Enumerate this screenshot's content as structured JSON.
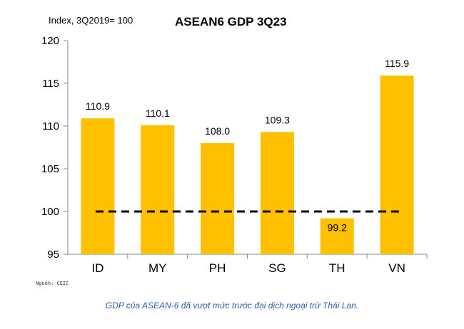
{
  "chart_data": {
    "type": "bar",
    "title": "ASEAN6 GDP 3Q23",
    "ylabel": "Index, 3Q2019= 100",
    "xlabel": "",
    "categories": [
      "ID",
      "MY",
      "PH",
      "SG",
      "TH",
      "VN"
    ],
    "values": [
      110.9,
      110.1,
      108.0,
      109.3,
      99.2,
      115.9
    ],
    "value_labels": [
      "110.9",
      "110.1",
      "108.0",
      "109.3",
      "99.2",
      "115.9"
    ],
    "ylim": [
      95,
      120
    ],
    "yticks": [
      "95",
      "100",
      "105",
      "110",
      "115",
      "120"
    ],
    "reference_line": 100,
    "grid": false,
    "legend": "none",
    "bar_color": "#ffc000",
    "line_color": "#000000"
  },
  "source": "Nguồn: CEIC",
  "caption": "GDP của ASEAN-6 đã vượt mức trước đại dịch ngoại trừ Thái Lan."
}
